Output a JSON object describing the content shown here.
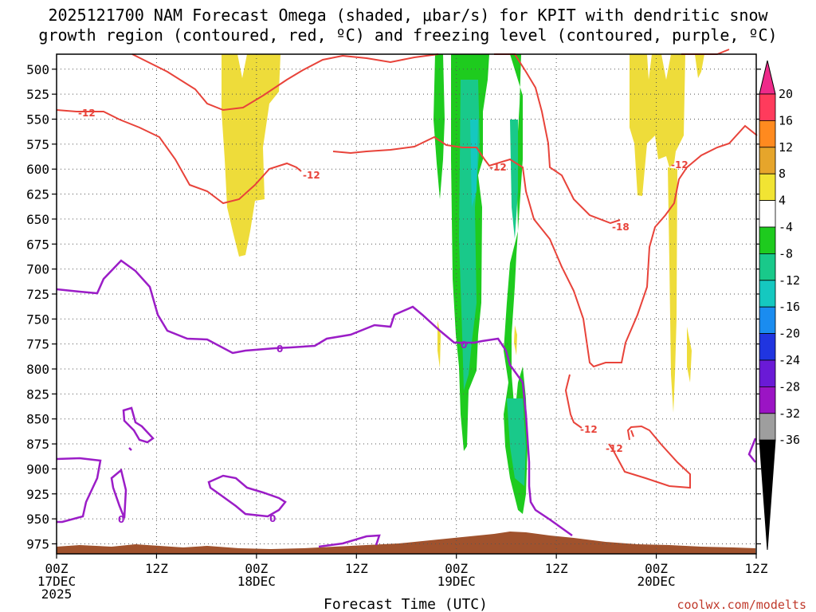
{
  "chart_data": {
    "type": "heatmap",
    "title_line1": "2025121700 NAM Forecast Omega (shaded, μbar/s) for KPIT with dendritic snow",
    "title_line2": "growth region (contoured, red, ºC) and freezing level (contoured, purple, ºC)",
    "xlabel": "Forecast Time (UTC)",
    "credit": "coolwx.com/modelts",
    "ylim": [
      485,
      985
    ],
    "xlim": [
      0,
      84
    ],
    "y_ticks": [
      "500",
      "525",
      "550",
      "575",
      "600",
      "625",
      "650",
      "675",
      "700",
      "725",
      "750",
      "775",
      "800",
      "825",
      "850",
      "875",
      "900",
      "925",
      "950",
      "975"
    ],
    "x_ticks": [
      {
        "hour": 0,
        "line1": "00Z",
        "line2": "17DEC",
        "line3": "2025"
      },
      {
        "hour": 12,
        "line1": "12Z",
        "line2": "",
        "line3": ""
      },
      {
        "hour": 24,
        "line1": "00Z",
        "line2": "18DEC",
        "line3": ""
      },
      {
        "hour": 36,
        "line1": "12Z",
        "line2": "",
        "line3": ""
      },
      {
        "hour": 48,
        "line1": "00Z",
        "line2": "19DEC",
        "line3": ""
      },
      {
        "hour": 60,
        "line1": "12Z",
        "line2": "",
        "line3": ""
      },
      {
        "hour": 72,
        "line1": "00Z",
        "line2": "20DEC",
        "line3": ""
      },
      {
        "hour": 84,
        "line1": "12Z",
        "line2": "",
        "line3": ""
      }
    ],
    "colorbar": {
      "labels": [
        "20",
        "16",
        "12",
        "8",
        "4",
        "-4",
        "-8",
        "-12",
        "-16",
        "-20",
        "-24",
        "-28",
        "-32",
        "-36"
      ],
      "colors": [
        "#ff3b5c",
        "#ff8a1f",
        "#e6a52b",
        "#f1e433",
        "#ffffff",
        "#1ecb1e",
        "#19c98a",
        "#15c8c0",
        "#1a8cf0",
        "#2035e0",
        "#6a1ad6",
        "#9b14c4",
        "#9e9e9e"
      ],
      "top_cap": "#ee2a8a",
      "bottom_cap": "#000000"
    },
    "contour_labels": {
      "red": [
        "-12",
        "-12",
        "-12",
        "-18",
        "-12",
        "-12",
        "-12"
      ],
      "purple": [
        "0",
        "0",
        "0",
        "0"
      ]
    }
  }
}
